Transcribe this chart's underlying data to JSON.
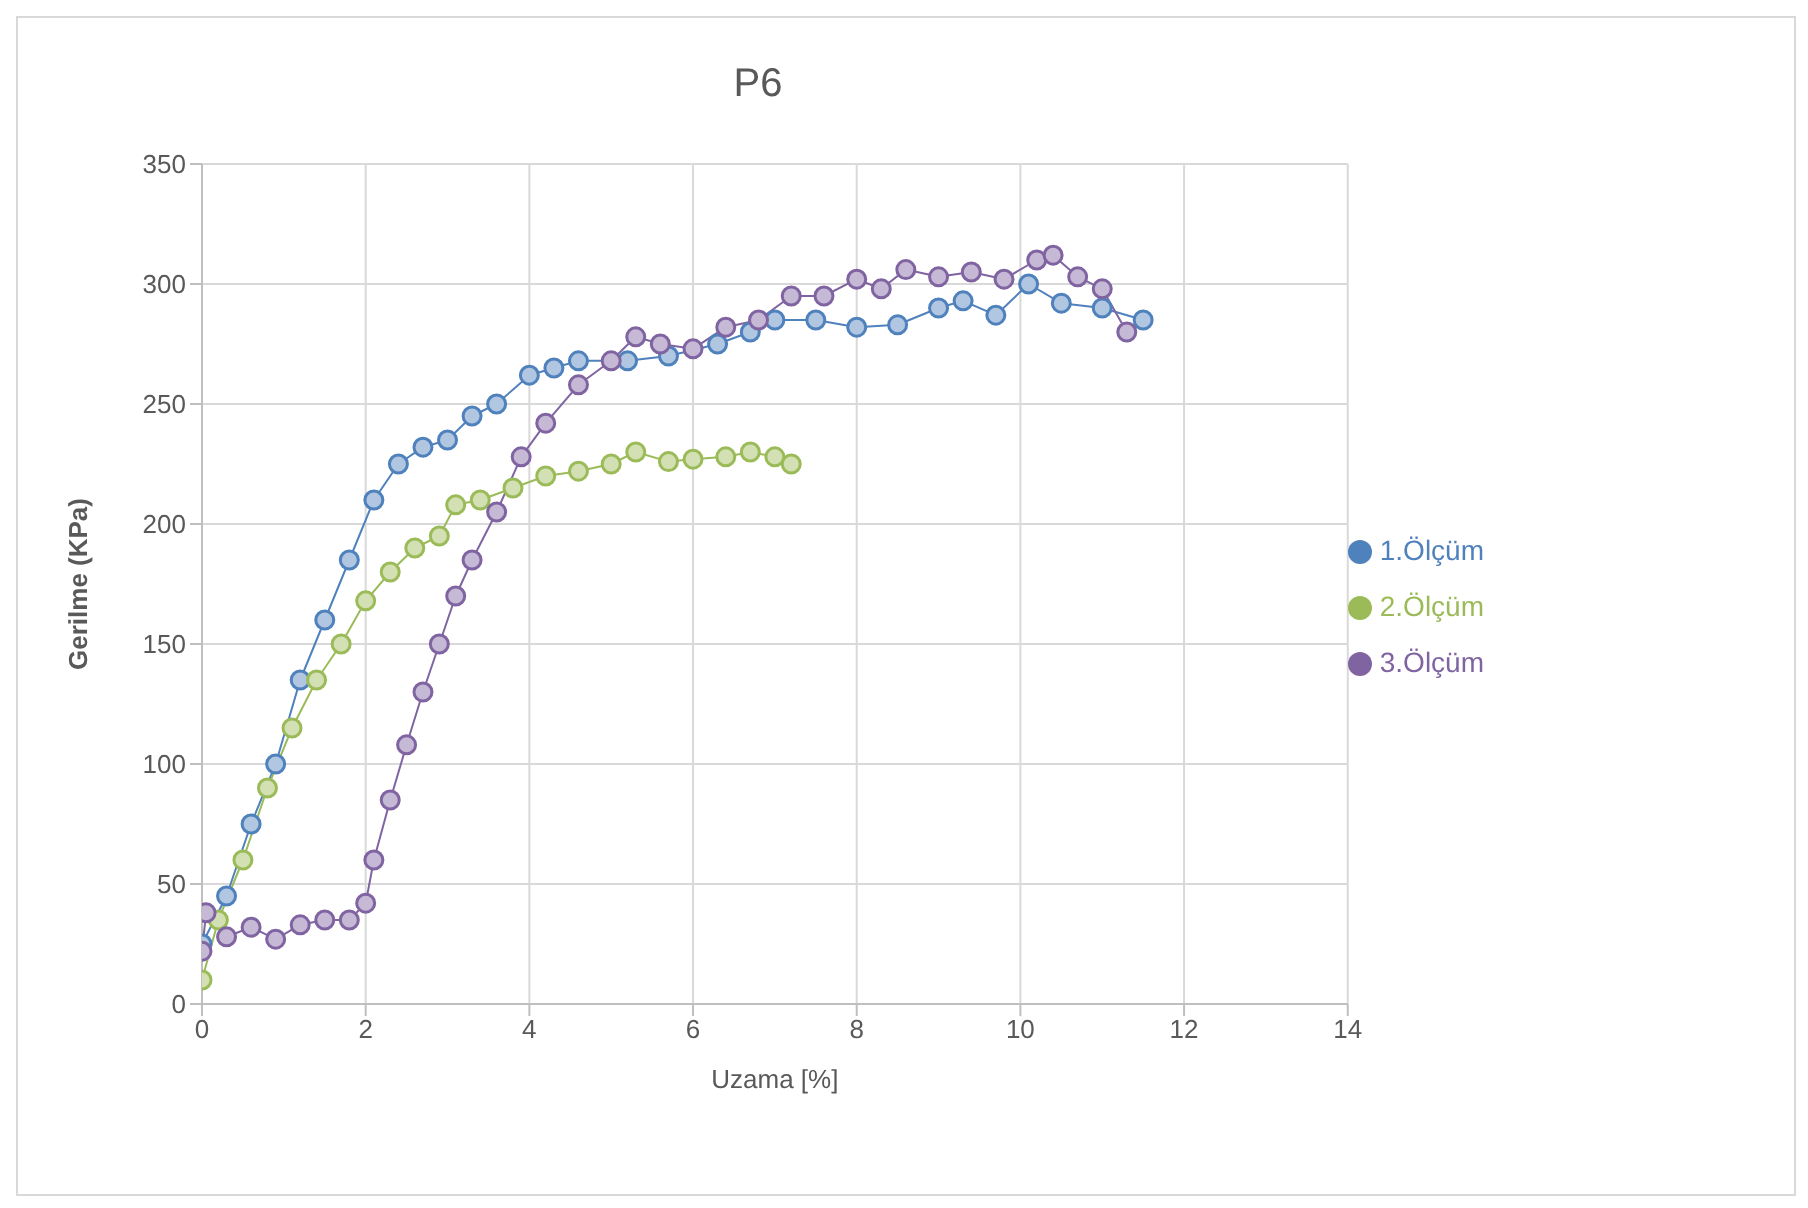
{
  "chart_data": {
    "type": "line",
    "title": "P6",
    "xlabel": "Uzama [%]",
    "ylabel": "Gerilme (KPa)",
    "xlim": [
      0,
      14
    ],
    "xticks": [
      0,
      2,
      4,
      6,
      8,
      10,
      12,
      14
    ],
    "ylim": [
      0,
      350
    ],
    "yticks": [
      0,
      50,
      100,
      150,
      200,
      250,
      300,
      350
    ],
    "grid": true,
    "legend": "right",
    "marker": "circle",
    "series": [
      {
        "name": "1.Ölçüm",
        "color": "#4f81bd",
        "x": [
          0,
          0.3,
          0.6,
          0.9,
          1.2,
          1.5,
          1.8,
          2.1,
          2.4,
          2.7,
          3.0,
          3.3,
          3.6,
          4.0,
          4.3,
          4.6,
          5.2,
          5.7,
          6.3,
          6.7,
          7.0,
          7.5,
          8.0,
          8.5,
          9.0,
          9.3,
          9.7,
          10.1,
          10.5,
          11.0,
          11.5
        ],
        "values": [
          25,
          45,
          75,
          100,
          135,
          160,
          185,
          210,
          225,
          232,
          235,
          245,
          250,
          262,
          265,
          268,
          268,
          270,
          275,
          280,
          285,
          285,
          282,
          283,
          290,
          293,
          287,
          300,
          292,
          290,
          285
        ]
      },
      {
        "name": "2.Ölçüm",
        "color": "#9bbb59",
        "x": [
          0,
          0.2,
          0.5,
          0.8,
          1.1,
          1.4,
          1.7,
          2.0,
          2.3,
          2.6,
          2.9,
          3.1,
          3.4,
          3.8,
          4.2,
          4.6,
          5.0,
          5.3,
          5.7,
          6.0,
          6.4,
          6.7,
          7.0,
          7.2
        ],
        "values": [
          10,
          35,
          60,
          90,
          115,
          135,
          150,
          168,
          180,
          190,
          195,
          208,
          210,
          215,
          220,
          222,
          225,
          230,
          226,
          227,
          228,
          230,
          228,
          225
        ]
      },
      {
        "name": "3.Ölçüm",
        "color": "#8064a2",
        "x": [
          0,
          0.05,
          0.3,
          0.6,
          0.9,
          1.2,
          1.5,
          1.8,
          2.0,
          2.1,
          2.3,
          2.5,
          2.7,
          2.9,
          3.1,
          3.3,
          3.6,
          3.9,
          4.2,
          4.6,
          5.0,
          5.3,
          5.6,
          6.0,
          6.4,
          6.8,
          7.2,
          7.6,
          8.0,
          8.3,
          8.6,
          9.0,
          9.4,
          9.8,
          10.2,
          10.4,
          10.7,
          11.0,
          11.3
        ],
        "values": [
          22,
          38,
          28,
          32,
          27,
          33,
          35,
          35,
          42,
          60,
          85,
          108,
          130,
          150,
          170,
          185,
          205,
          228,
          242,
          258,
          268,
          278,
          275,
          273,
          282,
          285,
          295,
          295,
          302,
          298,
          306,
          303,
          305,
          302,
          310,
          312,
          303,
          298,
          280
        ]
      }
    ]
  }
}
